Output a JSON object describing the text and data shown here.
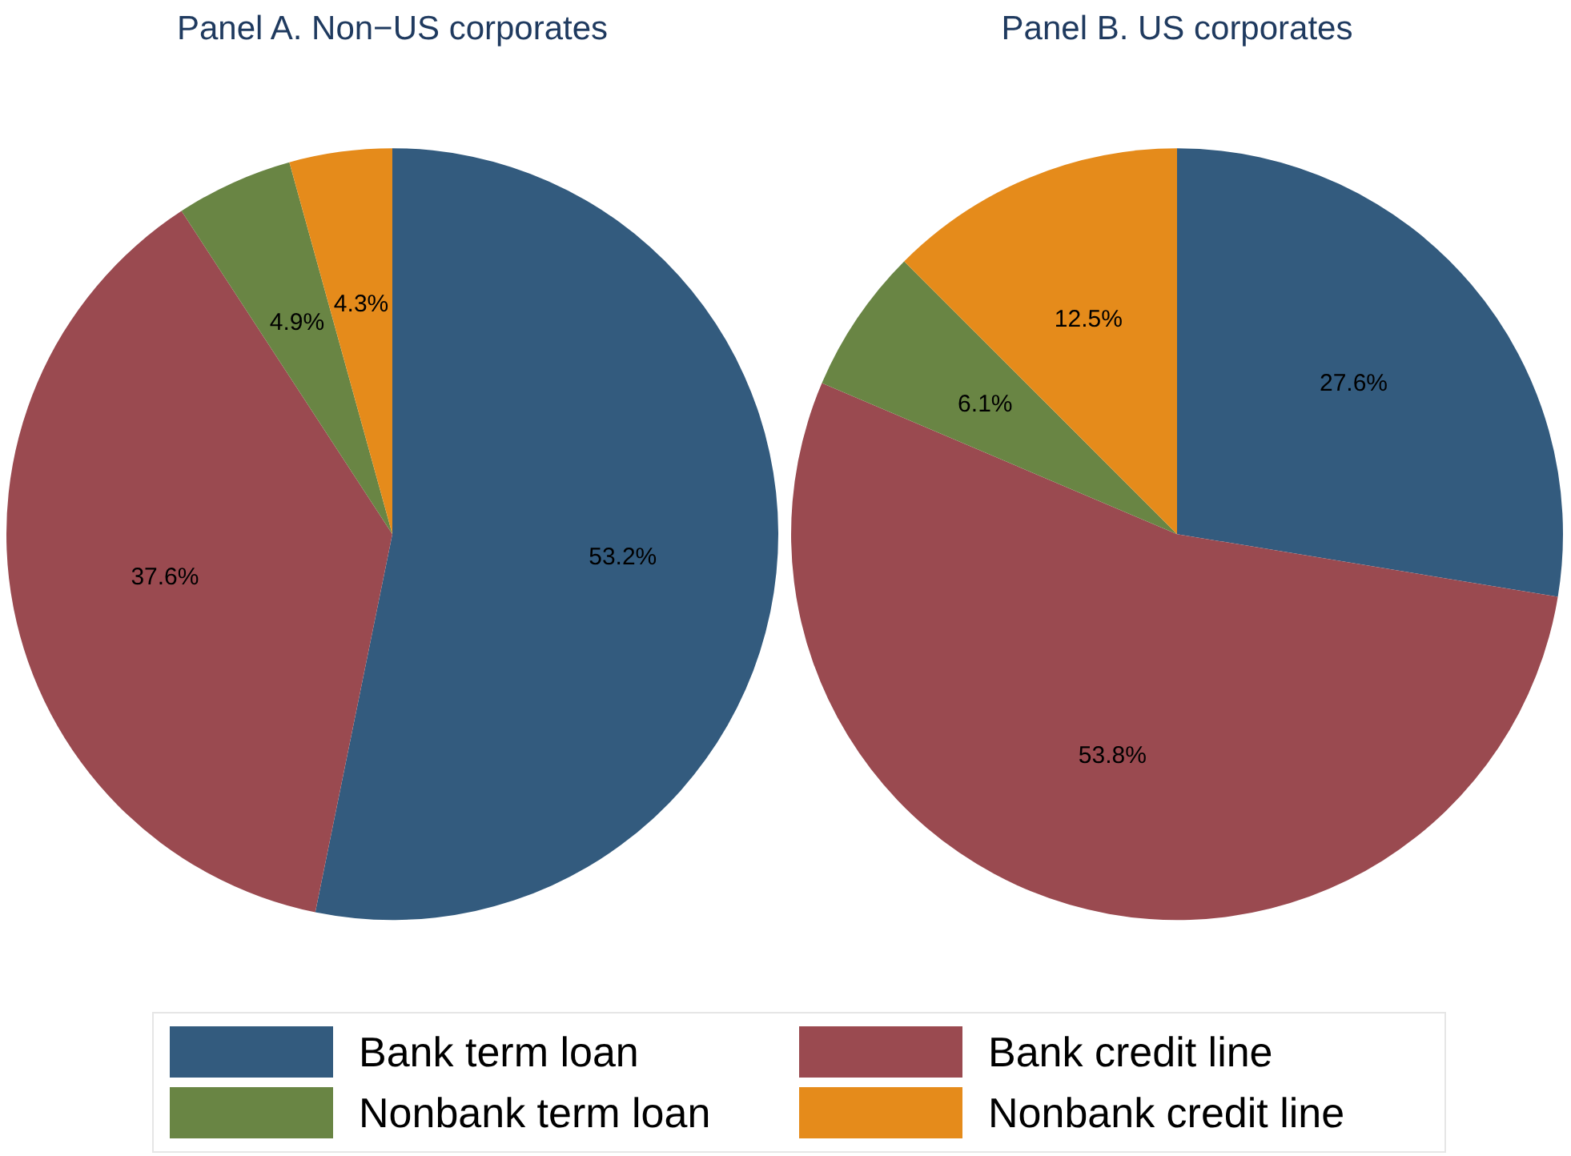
{
  "chart_data": [
    {
      "type": "pie",
      "title": "Panel A. Non−US corporates",
      "categories": [
        "Bank term loan",
        "Bank credit line",
        "Nonbank term loan",
        "Nonbank credit line"
      ],
      "values": [
        53.2,
        37.6,
        4.9,
        4.3
      ],
      "colors": [
        "#335b7e",
        "#9a4a50",
        "#698544",
        "#e58b1b"
      ],
      "value_labels": [
        "53.2%",
        "37.6%",
        "4.9%",
        "4.3%"
      ],
      "legend": "bottom"
    },
    {
      "type": "pie",
      "title": "Panel B. US corporates",
      "categories": [
        null,
        null,
        null,
        null
      ],
      "values": [
        27.6,
        53.8,
        6.1,
        12.5
      ],
      "colors": [
        "#335b7e",
        "#9a4a50",
        "#698544",
        "#e58b1b"
      ],
      "value_labels": [
        "27.6%",
        "53.8%",
        "6.1%",
        "12.5%"
      ]
    }
  ]
}
